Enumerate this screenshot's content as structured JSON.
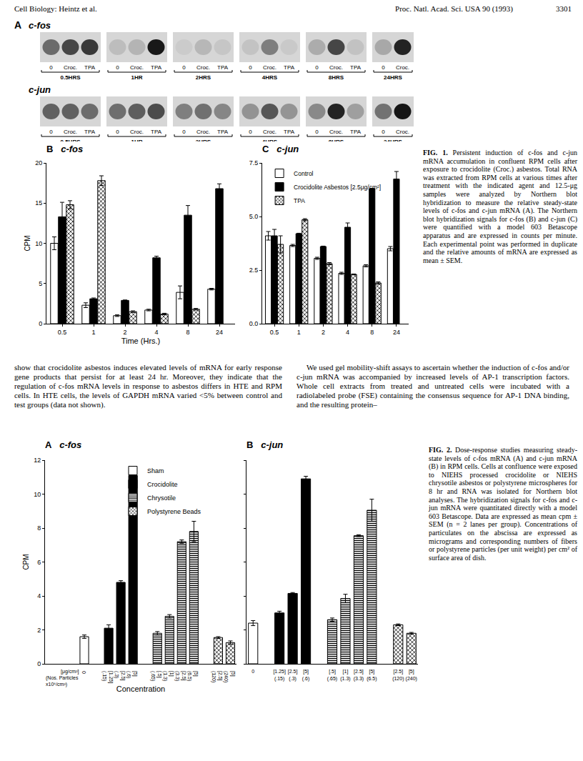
{
  "header": {
    "left": "Cell Biology: Heintz et al.",
    "right": "Proc. Natl. Acad. Sci. USA 90 (1993)",
    "page": "3301"
  },
  "figure1_blots": {
    "panel": "A",
    "rows": [
      {
        "gene": "c-fos"
      },
      {
        "gene": "c-jun"
      }
    ],
    "groups": [
      {
        "time": "0.5HRS",
        "lanes": [
          "0",
          "Croc.",
          "TPA"
        ]
      },
      {
        "time": "1HR",
        "lanes": [
          "0",
          "Croc.",
          "TPA"
        ]
      },
      {
        "time": "2HRS",
        "lanes": [
          "0",
          "Croc.",
          "TPA"
        ]
      },
      {
        "time": "4HRS",
        "lanes": [
          "0",
          "Croc.",
          "TPA"
        ]
      },
      {
        "time": "8HRS",
        "lanes": [
          "0",
          "Croc.",
          "TPA"
        ]
      },
      {
        "time": "24HRS",
        "lanes": [
          "0",
          "Croc."
        ]
      }
    ]
  },
  "chart_data": [
    {
      "type": "bar",
      "panel": "B",
      "title": "c-fos",
      "ylabel": "CPM",
      "xlabel": "Time (Hrs.)",
      "categories": [
        "0.5",
        "1",
        "2",
        "4",
        "8",
        "24"
      ],
      "ylim": [
        0,
        20
      ],
      "yticks": [
        0,
        5,
        10,
        15,
        20
      ],
      "grid": false,
      "series": [
        {
          "color": "#ffffff",
          "values": [
            10.0,
            2.3,
            1.0,
            1.7,
            3.9,
            4.3
          ],
          "errors": [
            0.8,
            0.3,
            0.1,
            0.1,
            0.8,
            0.1
          ]
        },
        {
          "color": "#000000",
          "values": [
            13.3,
            3.1,
            2.9,
            8.2,
            13.5,
            16.8
          ],
          "errors": [
            1.8,
            0.1,
            0.05,
            0.2,
            1.2,
            0.6
          ]
        },
        {
          "color": "#ffffff",
          "marker": "crosshatch",
          "values": [
            14.8,
            17.8,
            1.5,
            1.2,
            1.8,
            null
          ],
          "errors": [
            0.5,
            0.6,
            0.1,
            0.1,
            0.1,
            null
          ]
        }
      ]
    },
    {
      "type": "bar",
      "panel": "C",
      "title": "c-jun",
      "categories": [
        "0.5",
        "1",
        "2",
        "4",
        "8",
        "24"
      ],
      "ylim": [
        0,
        7.5
      ],
      "yticks": [
        {
          "value": 0,
          "label": "0.0"
        },
        2.5,
        {
          "value": 5,
          "label": "5.0"
        },
        7.5
      ],
      "grid": false,
      "legend": "upper left",
      "series": [
        {
          "name": "Control",
          "color": "#ffffff",
          "values": [
            4.1,
            3.65,
            3.05,
            2.35,
            2.7,
            3.5
          ],
          "errors": [
            0.2,
            0.05,
            0.05,
            0.05,
            0.05,
            0.1
          ]
        },
        {
          "name": "Crocidolite Asbestos [2.5μg/cm²]",
          "color": "#000000",
          "values": [
            4.1,
            4.2,
            3.6,
            4.5,
            6.3,
            6.75
          ],
          "errors": [
            0.3,
            0.02,
            0.02,
            0.2,
            0.02,
            0.35
          ]
        },
        {
          "name": "TPA",
          "color": "#ffffff",
          "marker": "crosshatch",
          "values": [
            3.7,
            4.85,
            2.8,
            2.3,
            1.9,
            null
          ],
          "errors": [
            0.4,
            0.05,
            0.05,
            0.02,
            0.05,
            null
          ]
        }
      ]
    },
    {
      "type": "bar",
      "panel": "A",
      "title": "c-fos",
      "ylabel": "CPM",
      "xlabel": "Concentration",
      "categories": [
        "0",
        null,
        "[1.25]",
        "[2.5]",
        "[5]",
        null,
        "[.5]",
        "[1]",
        "[2.5]",
        "[5]",
        null,
        "[2.5]",
        "[5]"
      ],
      "particle_counts": [
        null,
        null,
        "(.15)",
        "(.3)",
        "(.6)",
        null,
        "(.65)",
        "(1.3)",
        "(3.3)",
        "(6.5)",
        null,
        "(120)",
        "(240)"
      ],
      "row_titles": [
        "[μg/cm²]",
        "(Nos. Particles",
        "x10⁶/cm²)"
      ],
      "ylim": [
        0,
        12
      ],
      "yticks": [
        0,
        2,
        4,
        6,
        8,
        10,
        12
      ],
      "grid": false,
      "legend": "upper center",
      "series": [
        {
          "name": "Sham",
          "color": "#ffffff",
          "values": [
            1.6,
            null,
            null,
            null,
            null,
            null,
            null,
            null,
            null,
            null,
            null,
            null,
            null
          ],
          "errors": [
            0.1,
            null,
            null,
            null,
            null,
            null,
            null,
            null,
            null,
            null,
            null,
            null,
            null
          ]
        },
        {
          "name": "Crocidolite",
          "color": "#000000",
          "values": [
            null,
            null,
            2.1,
            4.8,
            11.1,
            null,
            null,
            null,
            null,
            null,
            null,
            null,
            null
          ],
          "errors": [
            null,
            null,
            0.2,
            0.1,
            0.3,
            null,
            null,
            null,
            null,
            null,
            null,
            null,
            null
          ]
        },
        {
          "name": "Chrysotile",
          "color": "#ffffff",
          "marker": "hstripe",
          "values": [
            null,
            null,
            null,
            null,
            null,
            null,
            1.8,
            2.8,
            7.2,
            7.8,
            null,
            null,
            null
          ],
          "errors": [
            null,
            null,
            null,
            null,
            null,
            null,
            0.1,
            0.1,
            0.1,
            0.6,
            null,
            null,
            null
          ]
        },
        {
          "name": "Polystyrene Beads",
          "color": "#ffffff",
          "marker": "crosshatch",
          "values": [
            null,
            null,
            null,
            null,
            null,
            null,
            null,
            null,
            null,
            null,
            null,
            1.55,
            1.25
          ],
          "errors": [
            null,
            null,
            null,
            null,
            null,
            null,
            null,
            null,
            null,
            null,
            null,
            0.05,
            0.1
          ]
        }
      ]
    },
    {
      "type": "bar",
      "panel": "B",
      "title": "c-jun",
      "tick_labels": "x",
      "categories": [
        "0",
        null,
        "[1.25]",
        "[2.5]",
        "[5]",
        null,
        "[.5]",
        "[1]",
        "[2.5]",
        "[5]",
        null,
        "[2.5]",
        "[5]"
      ],
      "particle_counts": [
        null,
        null,
        "(.15)",
        "(.3)",
        "(.6)",
        null,
        "(.65)",
        "(1.3)",
        "(3.3)",
        "(6.5)",
        null,
        "(120)",
        "(240)"
      ],
      "ylim": [
        0,
        12
      ],
      "yticks": [
        0,
        2,
        4,
        6,
        8,
        10,
        12
      ],
      "grid": false,
      "series": [
        {
          "color": "#ffffff",
          "values": [
            2.4,
            null,
            null,
            null,
            null,
            null,
            null,
            null,
            null,
            null,
            null,
            null,
            null
          ],
          "errors": [
            0.15,
            null,
            null,
            null,
            null,
            null,
            null,
            null,
            null,
            null,
            null,
            null,
            null
          ]
        },
        {
          "color": "#000000",
          "values": [
            null,
            null,
            3.0,
            4.15,
            10.9,
            null,
            null,
            null,
            null,
            null,
            null,
            null,
            null
          ],
          "errors": [
            null,
            null,
            0.1,
            0.05,
            0.15,
            null,
            null,
            null,
            null,
            null,
            null,
            null,
            null
          ]
        },
        {
          "color": "#ffffff",
          "marker": "hstripe",
          "values": [
            null,
            null,
            null,
            null,
            null,
            null,
            2.6,
            3.85,
            7.55,
            9.05,
            null,
            null,
            null
          ],
          "errors": [
            null,
            null,
            null,
            null,
            null,
            null,
            0.1,
            0.25,
            0.05,
            0.65,
            null,
            null,
            null
          ]
        },
        {
          "color": "#ffffff",
          "marker": "crosshatch",
          "values": [
            null,
            null,
            null,
            null,
            null,
            null,
            null,
            null,
            null,
            null,
            null,
            2.3,
            1.8
          ],
          "errors": [
            null,
            null,
            null,
            null,
            null,
            null,
            null,
            null,
            null,
            null,
            null,
            0.05,
            0.05
          ]
        }
      ]
    }
  ],
  "captions": [
    {
      "label": "FIG. 1.",
      "text": "Persistent induction of c-fos and c-jun mRNA accumulation in confluent RPM cells after exposure to crocidolite (Croc.) asbestos. Total RNA was extracted from RPM cells at various times after treatment with the indicated agent and 12.5-μg samples were analyzed by Northern blot hybridization to measure the relative steady-state levels of c-fos and c-jun mRNA (A). The Northern blot hybridization signals for c-fos (B) and c-jun (C) were quantified with a model 603 Betascope apparatus and are expressed in counts per minute. Each experimental point was performed in duplicate and the relative amounts of mRNA are expressed as mean ± SEM."
    },
    {
      "label": "FIG. 2.",
      "text": "Dose-response studies measuring steady-state levels of c-fos mRNA (A) and c-jun mRNA (B) in RPM cells. Cells at confluence were exposed to NIEHS processed crocidolite or NIEHS chrysotile asbestos or polystyrene microspheres for 8 hr and RNA was isolated for Northern blot analyses. The hybridization signals for c-fos and c-jun mRNA were quantitated directly with a model 603 Betascope. Data are expressed as mean cpm ± SEM (n = 2 lanes per group). Concentrations of particulates on the abscissa are expressed as micrograms and corresponding numbers of fibers or polystyrene particles (per unit weight) per cm² of surface area of dish."
    }
  ],
  "body_text": [
    "show that crocidolite asbestos induces elevated levels of mRNA for early response gene products that persist for at least 24 hr. Moreover, they indicate that the regulation of c-fos mRNA levels in response to asbestos differs in HTE and RPM cells. In HTE cells, the levels of GAPDH mRNA varied <5% between control and test groups (data not shown).",
    "We used gel mobility-shift assays to ascertain whether the induction of c-fos and/or c-jun mRNA was accompanied by increased levels of AP-1 transcription factors. Whole cell extracts from treated and untreated cells were incubated with a radiolabeled probe (FSE) containing the consensus sequence for AP-1 DNA binding, and the resulting protein–"
  ]
}
